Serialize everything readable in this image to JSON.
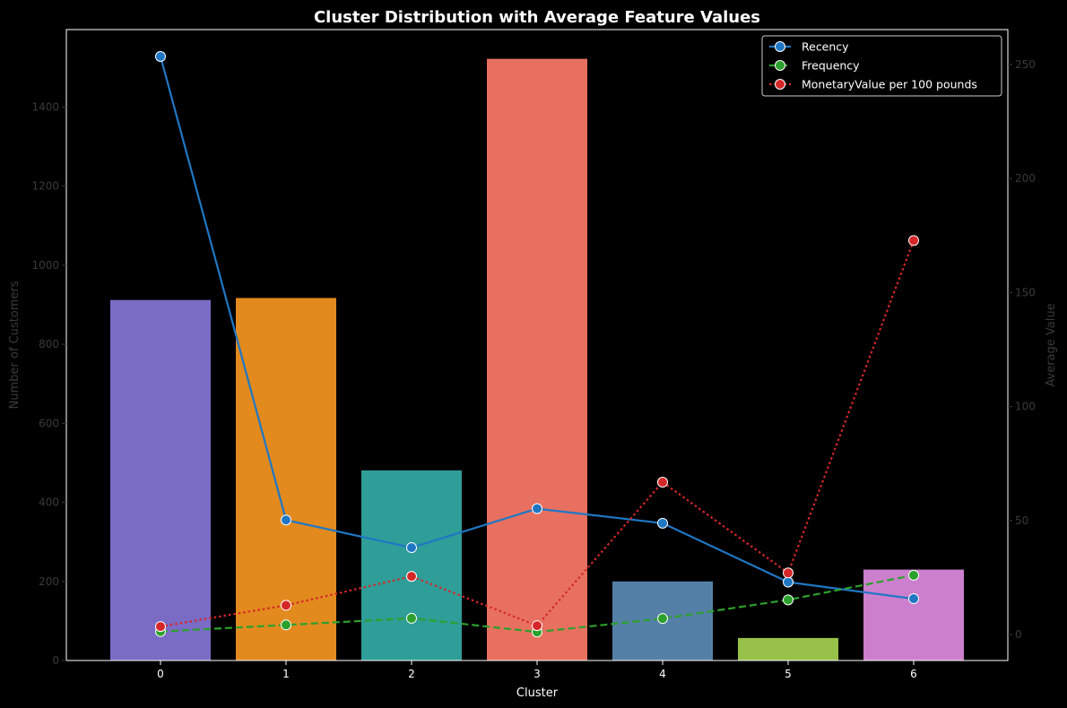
{
  "chart_data": {
    "type": "bar",
    "title": "Cluster Distribution with Average Feature Values",
    "xlabel": "Cluster",
    "ylabel_left": "Number of Customers",
    "ylabel_right": "Average Value",
    "categories": [
      "0",
      "1",
      "2",
      "3",
      "4",
      "5",
      "6"
    ],
    "bars": {
      "values": [
        912,
        917,
        481,
        1522,
        200,
        57,
        230
      ],
      "colors": [
        "#7a6bc5",
        "#e28a1e",
        "#2f9d98",
        "#e87060",
        "#5480a8",
        "#97c148",
        "#cc7fcc"
      ]
    },
    "left_axis": {
      "ylim": [
        0,
        1596
      ],
      "ticks": [
        0,
        200,
        400,
        600,
        800,
        1000,
        1200,
        1400
      ]
    },
    "right_axis": {
      "ylim": [
        -11.4,
        265.3
      ],
      "ticks": [
        0,
        50,
        100,
        150,
        200,
        250
      ]
    },
    "series": [
      {
        "name": "Recency",
        "values": [
          253.5,
          50.2,
          38.1,
          55.2,
          48.8,
          23.0,
          15.7
        ],
        "color": "#1f77c4",
        "style": "solid"
      },
      {
        "name": "Frequency",
        "values": [
          1.3,
          4.2,
          7.1,
          1.1,
          7.0,
          15.2,
          26.0
        ],
        "color": "#2ca02c",
        "style": "dashed"
      },
      {
        "name": "MonetaryValue per 100 pounds",
        "values": [
          3.5,
          12.8,
          25.5,
          3.9,
          66.8,
          27.0,
          172.8
        ],
        "color": "#d62728",
        "style": "dotted"
      }
    ],
    "legend": "top-right",
    "grid": false,
    "background": "#000000",
    "foreground": "#ffffff",
    "muted": "#3a3a3a"
  }
}
